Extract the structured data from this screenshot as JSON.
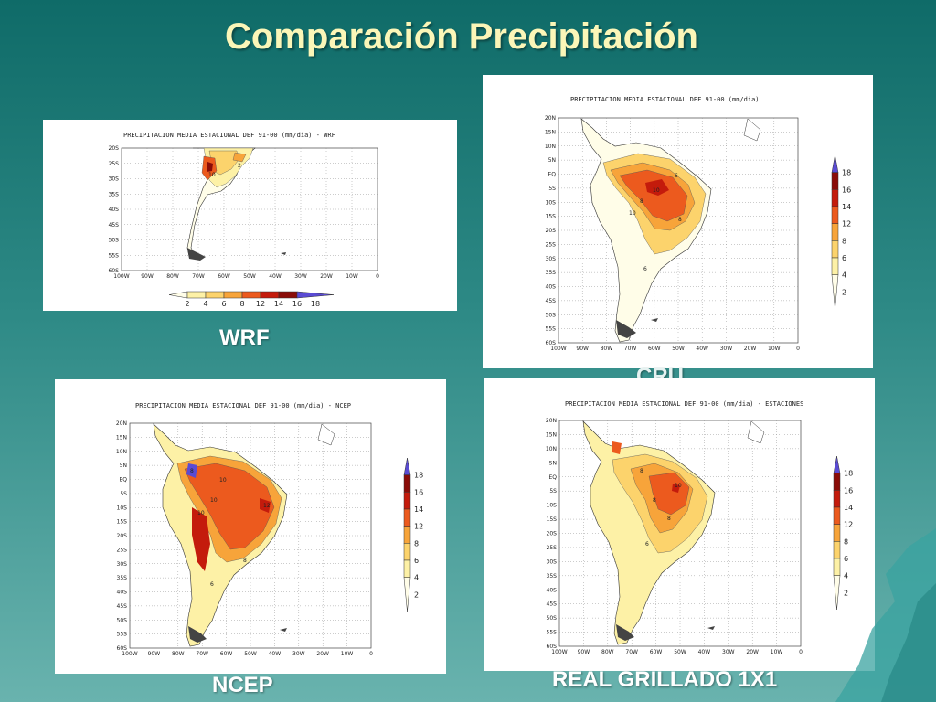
{
  "slide": {
    "title": "Comparación  Precipitación",
    "colors": {
      "background_top": "#0f6b68",
      "background_bottom": "#69b3ae",
      "title": "#fbf6b8",
      "caption": "#ffffff"
    }
  },
  "shared": {
    "lat_labels": [
      "20N",
      "15N",
      "10N",
      "5N",
      "EQ",
      "5S",
      "10S",
      "15S",
      "20S",
      "25S",
      "30S",
      "35S",
      "40S",
      "45S",
      "50S",
      "55S",
      "60S"
    ],
    "lon_labels": [
      "100W",
      "90W",
      "80W",
      "70W",
      "60W",
      "50W",
      "40W",
      "30W",
      "20W",
      "10W",
      "0"
    ],
    "colorbar": {
      "levels": [
        "2",
        "4",
        "6",
        "8",
        "12",
        "14",
        "16",
        "18"
      ],
      "colors": [
        "#fffde8",
        "#fdf1a6",
        "#fcd36c",
        "#f7a43a",
        "#ec5a1e",
        "#c41b0c",
        "#8a0c08",
        "#5a4bd3"
      ]
    }
  },
  "panels": {
    "wrf": {
      "map_title": "PRECIPITACION MEDIA ESTACIONAL DEF 91-00 (mm/dia) - WRF",
      "caption": "WRF",
      "lat_labels": [
        "20S",
        "25S",
        "30S",
        "35S",
        "40S",
        "45S",
        "50S",
        "55S",
        "60S"
      ],
      "contour_labels": [
        "10",
        "2"
      ]
    },
    "cru": {
      "map_title": "PRECIPITACION MEDIA ESTACIONAL DEF 91-00 (mm/dia)",
      "caption": "CRU",
      "contour_labels": [
        "10",
        "10",
        "8",
        "8",
        "6",
        "6"
      ]
    },
    "ncep": {
      "map_title": "PRECIPITACION MEDIA ESTACIONAL DEF 91-00 (mm/dia) - NCEP",
      "caption": "NCEP",
      "contour_labels": [
        "8",
        "10",
        "10",
        "12",
        "10",
        "8",
        "6"
      ]
    },
    "estaciones": {
      "map_title": "PRECIPITACION MEDIA ESTACIONAL DEF 91-00 (mm/dia) - ESTACIONES",
      "caption": "REAL GRILLADO 1X1",
      "contour_labels": [
        "8",
        "8",
        "10",
        "8",
        "6"
      ]
    }
  }
}
